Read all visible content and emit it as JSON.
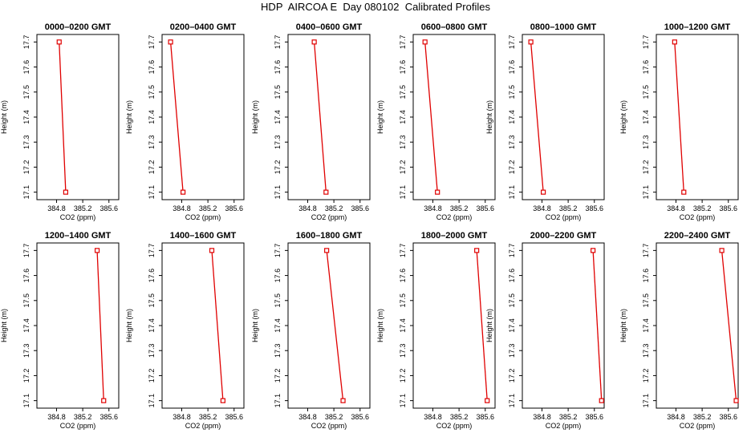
{
  "title": "HDP  AIRCOA E  Day 080102  Calibrated Profiles",
  "colors": {
    "series": "#e00000",
    "axis": "#000000"
  },
  "chart_data": {
    "type": "line",
    "xlabel": "CO2 (ppm)",
    "ylabel": "Height (m)",
    "xlim": [
      384.5,
      385.75
    ],
    "ylim": [
      17.07,
      17.73
    ],
    "xticks": [
      "384.8",
      "385.2",
      "385.6"
    ],
    "yticks": [
      "17.1",
      "17.2",
      "17.3",
      "17.4",
      "17.5",
      "17.6",
      "17.7"
    ],
    "markers": "open-square",
    "panels": [
      {
        "title": "0000–0200 GMT",
        "x": [
          384.84,
          384.94
        ],
        "y": [
          17.7,
          17.1
        ]
      },
      {
        "title": "0200–0400 GMT",
        "x": [
          384.63,
          384.82
        ],
        "y": [
          17.7,
          17.1
        ]
      },
      {
        "title": "0400–0600 GMT",
        "x": [
          384.9,
          385.08
        ],
        "y": [
          17.7,
          17.1
        ]
      },
      {
        "title": "0600–0800 GMT",
        "x": [
          384.68,
          384.87
        ],
        "y": [
          17.7,
          17.1
        ]
      },
      {
        "title": "0800–1000 GMT",
        "x": [
          384.63,
          384.82
        ],
        "y": [
          17.7,
          17.1
        ]
      },
      {
        "title": "1000–1200 GMT",
        "x": [
          384.78,
          384.92
        ],
        "y": [
          17.7,
          17.1
        ]
      },
      {
        "title": "1200–1400 GMT",
        "x": [
          385.42,
          385.52
        ],
        "y": [
          17.7,
          17.1
        ]
      },
      {
        "title": "1400–1600 GMT",
        "x": [
          385.26,
          385.43
        ],
        "y": [
          17.7,
          17.1
        ]
      },
      {
        "title": "1600–1800 GMT",
        "x": [
          385.09,
          385.34
        ],
        "y": [
          17.7,
          17.1
        ]
      },
      {
        "title": "1800–2000 GMT",
        "x": [
          385.47,
          385.63
        ],
        "y": [
          17.7,
          17.1
        ]
      },
      {
        "title": "2000–2200 GMT",
        "x": [
          385.58,
          385.71
        ],
        "y": [
          17.7,
          17.1
        ]
      },
      {
        "title": "2200–2400 GMT",
        "x": [
          385.5,
          385.72
        ],
        "y": [
          17.7,
          17.1
        ]
      }
    ]
  }
}
